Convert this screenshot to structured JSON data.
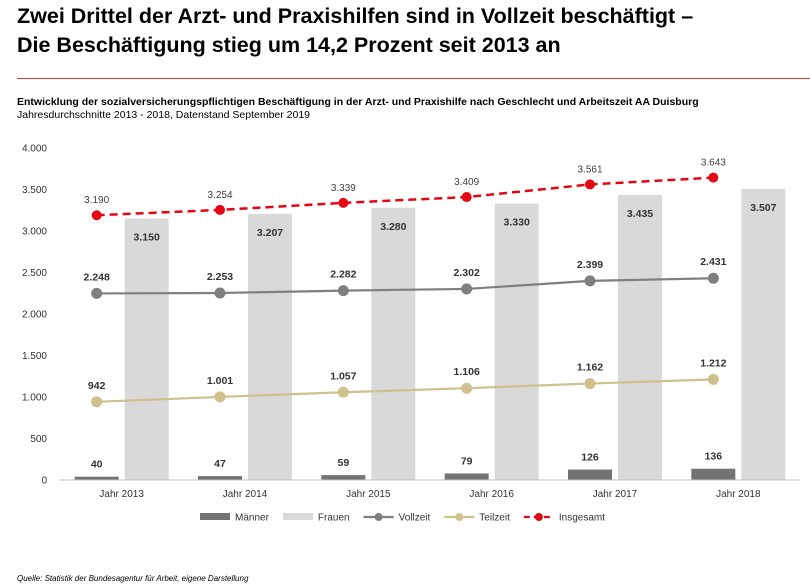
{
  "headline": {
    "line1": "Zwei Drittel der Arzt- und Praxishilfen sind in Vollzeit beschäftigt –",
    "line2": "Die Beschäftigung stieg um 14,2 Prozent seit 2013 an"
  },
  "source": "Quelle: Statistik der Bundesagentur für Arbeit, eigene Darstellung",
  "chart_data": {
    "type": "bar",
    "title": "Entwicklung der sozialversicherungspflichtigen Beschäftigung in der Arzt- und Praxishilfe nach Geschlecht und Arbeitszeit AA Duisburg",
    "subtitle": "Jahresdurchschnitte 2013 - 2018, Datenstand September 2019",
    "categories": [
      "Jahr 2013",
      "Jahr 2014",
      "Jahr 2015",
      "Jahr 2016",
      "Jahr 2017",
      "Jahr 2018"
    ],
    "ylim": [
      0,
      4000
    ],
    "yticks": [
      0,
      500,
      1000,
      1500,
      2000,
      2500,
      3000,
      3500,
      4000
    ],
    "ytick_labels": [
      "0",
      "500",
      "1.000",
      "1.500",
      "2.000",
      "2.500",
      "3.000",
      "3.500",
      "4.000"
    ],
    "grid": false,
    "legend_position": "bottom",
    "series": [
      {
        "name": "Männer",
        "kind": "bar",
        "color": "#737373",
        "values": [
          40,
          47,
          59,
          79,
          126,
          136
        ],
        "labels": [
          "40",
          "47",
          "59",
          "79",
          "126",
          "136"
        ]
      },
      {
        "name": "Frauen",
        "kind": "bar",
        "color": "#d9d9d9",
        "values": [
          3150,
          3207,
          3280,
          3330,
          3435,
          3507
        ],
        "labels": [
          "3.150",
          "3.207",
          "3.280",
          "3.330",
          "3.435",
          "3.507"
        ]
      },
      {
        "name": "Vollzeit",
        "kind": "line",
        "color": "#7f7f7f",
        "values": [
          2248,
          2253,
          2282,
          2302,
          2399,
          2431
        ],
        "labels": [
          "2.248",
          "2.253",
          "2.282",
          "2.302",
          "2.399",
          "2.431"
        ]
      },
      {
        "name": "Teilzeit",
        "kind": "line",
        "color": "#cfc08e",
        "values": [
          942,
          1001,
          1057,
          1106,
          1162,
          1212
        ],
        "labels": [
          "942",
          "1.001",
          "1.057",
          "1.106",
          "1.162",
          "1.212"
        ]
      },
      {
        "name": "Insgesamt",
        "kind": "line-dashed",
        "color": "#e30613",
        "values": [
          3190,
          3254,
          3339,
          3409,
          3561,
          3643
        ],
        "labels": [
          "3.190",
          "3.254",
          "3.339",
          "3.409",
          "3.561",
          "3.643"
        ]
      }
    ]
  }
}
